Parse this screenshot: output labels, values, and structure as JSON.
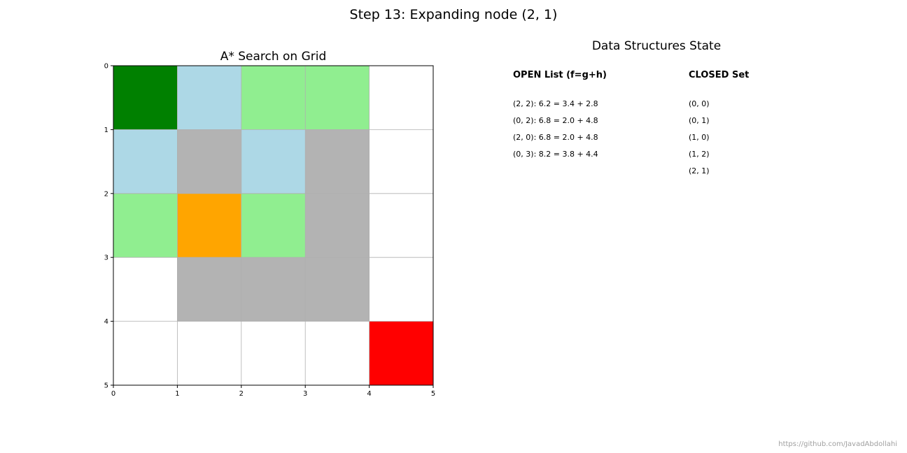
{
  "suptitle": "Step 13: Expanding node (2, 1)",
  "grid_panel": {
    "title": "A* Search on Grid",
    "rows": 5,
    "cols": 5,
    "x_ticks": [
      "0",
      "1",
      "2",
      "3",
      "4",
      "5"
    ],
    "y_ticks": [
      "0",
      "1",
      "2",
      "3",
      "4",
      "5"
    ],
    "grid": true,
    "colors": {
      "start": "#008000",
      "goal": "#ff0000",
      "open": "#90ee90",
      "closed": "#add8e6",
      "current": "#ffa500",
      "obstacle": "#b3b3b3",
      "empty": "#ffffff",
      "gridline": "#b0b0b0"
    },
    "cells": [
      [
        "start",
        "closed",
        "open",
        "open",
        "empty"
      ],
      [
        "closed",
        "obstacle",
        "closed",
        "obstacle",
        "empty"
      ],
      [
        "open",
        "current",
        "open",
        "obstacle",
        "empty"
      ],
      [
        "empty",
        "obstacle",
        "obstacle",
        "obstacle",
        "empty"
      ],
      [
        "empty",
        "empty",
        "empty",
        "empty",
        "goal"
      ]
    ]
  },
  "data_panel": {
    "title": "Data Structures State",
    "open_heading": "OPEN List (f=g+h)",
    "closed_heading": "CLOSED Set",
    "open_list": [
      "(2, 2): 6.2 = 3.4 + 2.8",
      "(0, 2): 6.8 = 2.0 + 4.8",
      "(2, 0): 6.8 = 2.0 + 4.8",
      "(0, 3): 8.2 = 3.8 + 4.4"
    ],
    "closed_set": [
      "(0, 0)",
      "(0, 1)",
      "(1, 0)",
      "(1, 2)",
      "(2, 1)"
    ]
  },
  "credit": "https://github.com/JavadAbdollahi"
}
